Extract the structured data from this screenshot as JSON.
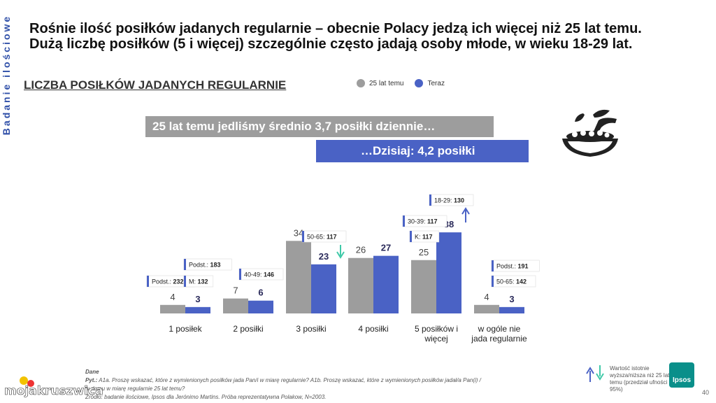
{
  "side_label": "Badanie ilościowe",
  "headline": {
    "line1": "Rośnie ilość posiłków jadanych regularnie – obecnie Polacy jedzą ich więcej niż 25 lat temu.",
    "line2": "Dużą liczbę posiłków (5 i więcej) szczególnie często jadają osoby młode, w wieku 18-29 lat."
  },
  "banners": {
    "past": "25 lat temu jedliśmy średnio 3,7 posiłki dziennie…",
    "now": "…Dzisiaj: 4,2 posiłki"
  },
  "icons": {
    "plate": "salad-plate-icon",
    "up": "arrow-up-icon",
    "down": "arrow-down-icon"
  },
  "colors": {
    "past": "#9d9d9d",
    "now": "#4a62c5",
    "accent": "#2f4fa8",
    "arrow_up": "#4a62c5",
    "arrow_down": "#3fc9a8"
  },
  "chart_data": {
    "type": "bar",
    "title": "LICZBA POSIŁKÓW JADANYCH  REGULARNIE",
    "categories": [
      "1 posiłek",
      "2 posiłki",
      "3 posiłki",
      "4 posiłki",
      "5 posiłków i więcej",
      "w ogóle nie jada regularnie"
    ],
    "series": [
      {
        "name": "25 lat temu",
        "values": [
          4,
          7,
          34,
          26,
          25,
          4
        ]
      },
      {
        "name": "Teraz",
        "values": [
          3,
          6,
          23,
          27,
          38,
          3
        ]
      }
    ],
    "ylim": [
      0,
      50
    ],
    "legend_position": "top",
    "annotations": [
      {
        "category": "1 posiłek",
        "labels": [
          {
            "label": "Podst.:",
            "value": "232"
          },
          {
            "label": "Podst.:",
            "value": "183"
          },
          {
            "label": "M:",
            "value": "132"
          }
        ]
      },
      {
        "category": "2 posiłki",
        "labels": [
          {
            "label": "40-49:",
            "value": "146"
          }
        ]
      },
      {
        "category": "3 posiłki",
        "labels": [
          {
            "label": "50-65:",
            "value": "117"
          }
        ],
        "arrow": "down"
      },
      {
        "category": "5 posiłków i więcej",
        "labels": [
          {
            "label": "18-29:",
            "value": "130"
          },
          {
            "label": "30-39:",
            "value": "117"
          },
          {
            "label": "K:",
            "value": "117"
          }
        ],
        "arrow": "up"
      },
      {
        "category": "w ogóle nie jada regularnie",
        "labels": [
          {
            "label": "Podst.:",
            "value": "191"
          },
          {
            "label": "50-65:",
            "value": "142"
          }
        ]
      }
    ]
  },
  "footer": {
    "question_label": "Dane",
    "question_prefix": "Pyt.:",
    "question": "A1a. Proszę wskazać, które z wymienionych posiłków jada Pan/i w miarę regularnie? A1b. Proszę wskazać, które z wymienionych posiłków jadał/a Pan(i) /",
    "question2": "w domu w miarę regularnie 25 lat temu?",
    "source": "Źródło: badanie ilościowe, Ipsos dla Jerónimo Martins. Próba reprezentatywna Polakow, N=2003."
  },
  "significance_note": "Wartość istotnie wyższa/niższa niż 25 lat temu (przedział ufności 95%)",
  "brand": "Ipsos",
  "page_number": "40",
  "watermark": "mojakruszwica"
}
